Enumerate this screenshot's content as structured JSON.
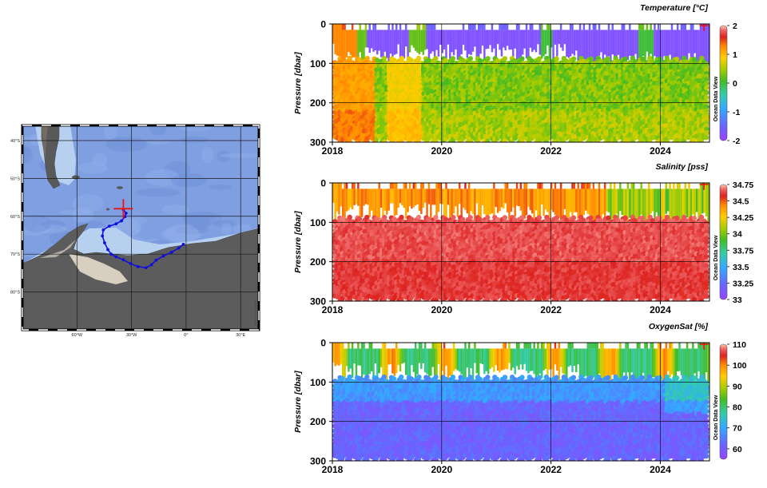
{
  "map": {
    "lat_labels": [
      "40°S",
      "50°S",
      "60°S",
      "70°S",
      "80°S"
    ],
    "lon_labels": [
      "60°W",
      "30°W",
      "0°",
      "30°E"
    ],
    "credit": "Ocean Data View",
    "track": [
      [
        -34.5,
        -58.2
      ],
      [
        -33,
        -59.2
      ],
      [
        -33.6,
        -60.1
      ],
      [
        -35.5,
        -61.2
      ],
      [
        -38.5,
        -62.0
      ],
      [
        -42.2,
        -62.6
      ],
      [
        -45.5,
        -63.6
      ],
      [
        -46.0,
        -65.2
      ],
      [
        -44.8,
        -67.0
      ],
      [
        -43.0,
        -68.8
      ],
      [
        -41.2,
        -70.0
      ],
      [
        -38.5,
        -70.7
      ],
      [
        -34.5,
        -71.5
      ],
      [
        -30.5,
        -72.5
      ],
      [
        -26.5,
        -73.3
      ],
      [
        -22.0,
        -73.6
      ],
      [
        -19.0,
        -72.8
      ],
      [
        -16.5,
        -71.6
      ],
      [
        -12.5,
        -70.5
      ],
      [
        -8.0,
        -69.5
      ],
      [
        -4.0,
        -68.4
      ],
      [
        -1.5,
        -67.4
      ]
    ],
    "marker": [
      -34.5,
      -58.0
    ],
    "colors": {
      "track": "#1010dd",
      "marker": "#ee1111"
    }
  },
  "chart_data": [
    {
      "type": "heatmap",
      "title": "Temperature [°C]",
      "ylabel": "Pressure [dbar]",
      "xlabel": "",
      "x_ticks": [
        "2018",
        "2020",
        "2022",
        "2024"
      ],
      "x_tick_values": [
        2018,
        2020,
        2022,
        2024
      ],
      "xlim": [
        2018,
        2024.9
      ],
      "y_ticks": [
        "0",
        "100",
        "200",
        "300"
      ],
      "ylim": [
        0,
        300
      ],
      "colorbar": {
        "ticks": [
          "2",
          "1",
          "0",
          "-1",
          "-2"
        ],
        "tick_values": [
          2,
          1,
          0,
          -1,
          -2
        ],
        "range": [
          -2,
          2
        ]
      },
      "credit": "Ocean Data View",
      "layers": [
        {
          "depth_range": [
            0,
            100
          ],
          "summary": "surface values mostly -2 to -1 °C (violet), short warm episodes up to 2 °C in early 2018, mid 2019, late 2023"
        },
        {
          "depth_range": [
            100,
            300
          ],
          "summary": "values mostly 0 to 1 °C, up to 1.6 °C in 2018"
        }
      ]
    },
    {
      "type": "heatmap",
      "title": "Salinity [pss]",
      "ylabel": "Pressure [dbar]",
      "xlabel": "",
      "x_ticks": [
        "2018",
        "2020",
        "2022",
        "2024"
      ],
      "x_tick_values": [
        2018,
        2020,
        2022,
        2024
      ],
      "xlim": [
        2018,
        2024.9
      ],
      "y_ticks": [
        "0",
        "100",
        "200",
        "300"
      ],
      "ylim": [
        0,
        300
      ],
      "colorbar": {
        "ticks": [
          "34.75",
          "34.5",
          "34.25",
          "34",
          "33.75",
          "33.5",
          "33.25",
          "33"
        ],
        "tick_values": [
          34.75,
          34.5,
          34.25,
          34,
          33.75,
          33.5,
          33.25,
          33
        ],
        "range": [
          33,
          34.75
        ]
      },
      "credit": "Ocean Data View",
      "layers": [
        {
          "depth_range": [
            0,
            100
          ],
          "summary": "surface values 34.1 to 34.45 pss, fresher (33.5 to 34) after 2023"
        },
        {
          "depth_range": [
            100,
            300
          ],
          "summary": "values 34.5 to 34.7 pss"
        }
      ]
    },
    {
      "type": "heatmap",
      "title": "OxygenSat [%]",
      "ylabel": "Pressure [dbar]",
      "xlabel": "",
      "x_ticks": [
        "2018",
        "2020",
        "2022",
        "2024"
      ],
      "x_tick_values": [
        2018,
        2020,
        2022,
        2024
      ],
      "xlim": [
        2018,
        2024.9
      ],
      "y_ticks": [
        "0",
        "100",
        "200",
        "300"
      ],
      "ylim": [
        0,
        300
      ],
      "colorbar": {
        "ticks": [
          "110",
          "100",
          "90",
          "80",
          "70",
          "60"
        ],
        "tick_values": [
          110,
          100,
          90,
          80,
          70,
          60
        ],
        "range": [
          55,
          110
        ]
      },
      "credit": "Ocean Data View",
      "layers": [
        {
          "depth_range": [
            0,
            100
          ],
          "summary": "surface values 70 to 100 %, near 100 % in summers"
        },
        {
          "depth_range": [
            100,
            300
          ],
          "summary": "values 58 to 72 %"
        }
      ]
    }
  ]
}
